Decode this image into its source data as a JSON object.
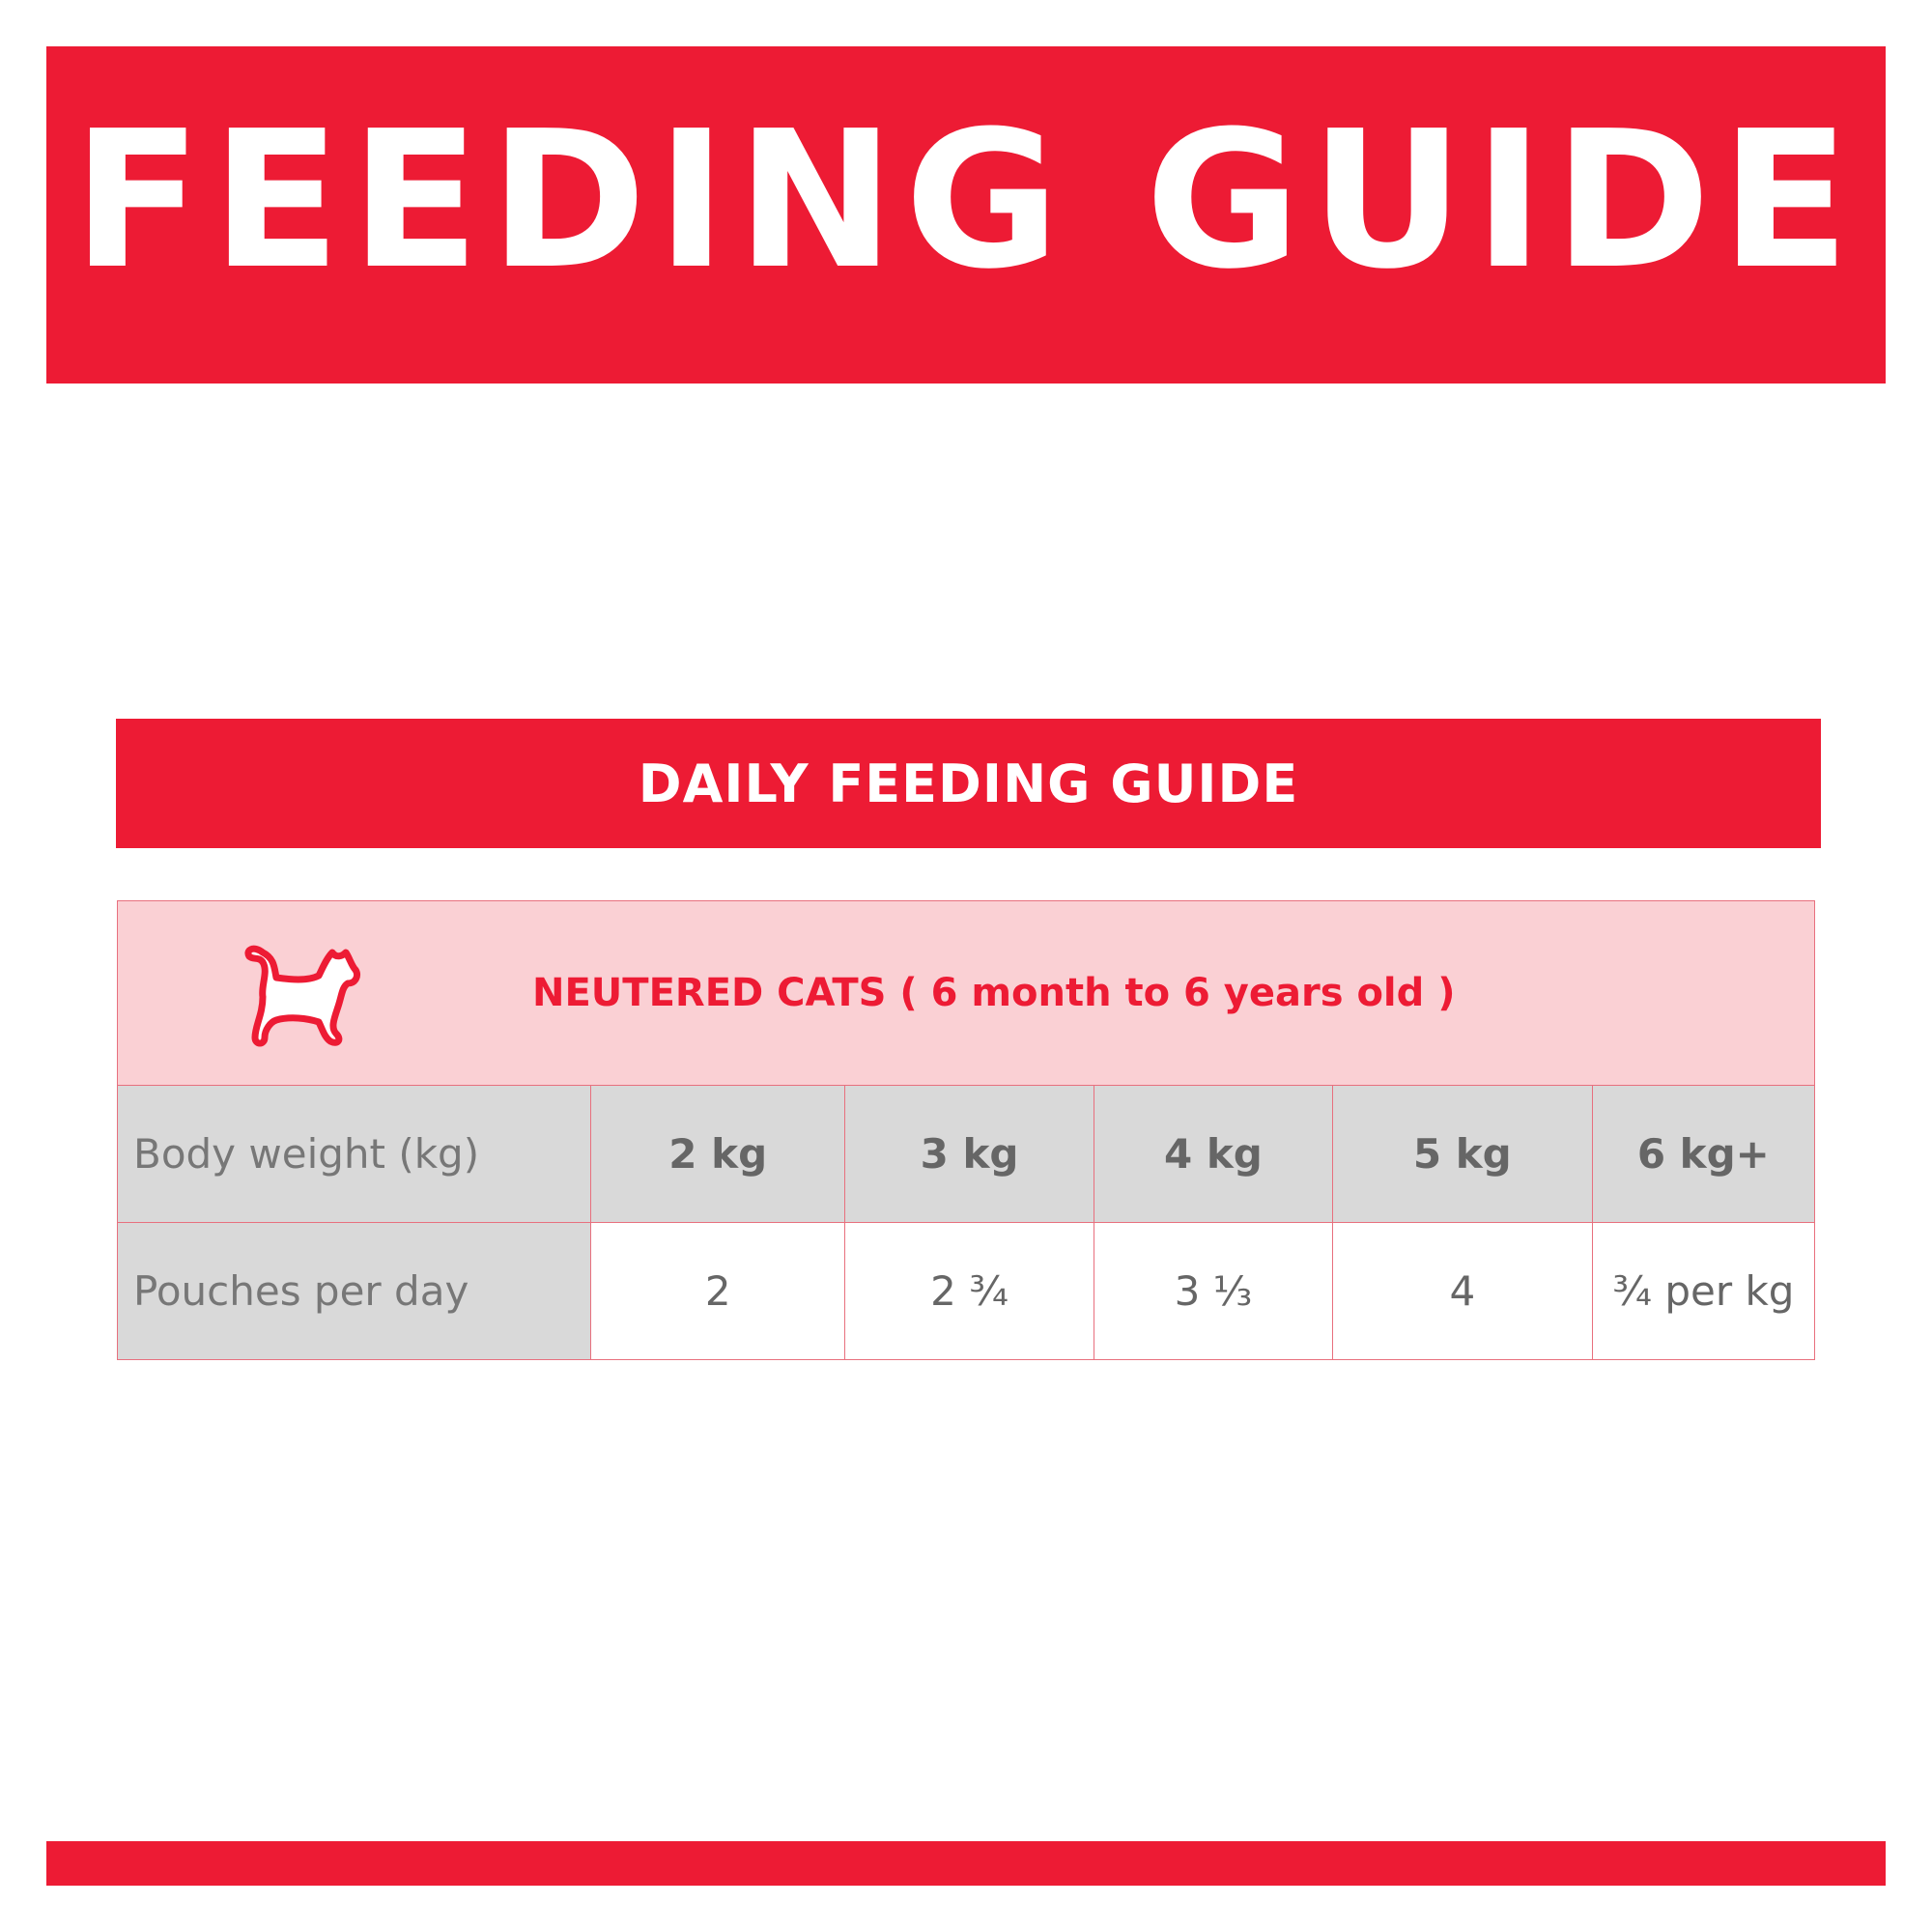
{
  "header": {
    "title": "FEEDING GUIDE"
  },
  "guide": {
    "title": "DAILY FEEDING GUIDE",
    "category": "NEUTERED CATS ( 6 month to 6 years old )",
    "category_icon": "cat-icon",
    "rows": [
      {
        "label": "Body weight (kg)",
        "values": [
          "2 kg",
          "3 kg",
          "4 kg",
          "5 kg",
          "6 kg+"
        ]
      },
      {
        "label": "Pouches per day",
        "values": [
          "2",
          "2 ¾",
          "3 ⅓",
          "4",
          "¾ per kg"
        ]
      }
    ]
  },
  "colors": {
    "brand_red": "#ED1B34",
    "header_pink": "#FAD0D4",
    "cell_gray": "#D9D9D9",
    "text_gray": "#666666"
  }
}
